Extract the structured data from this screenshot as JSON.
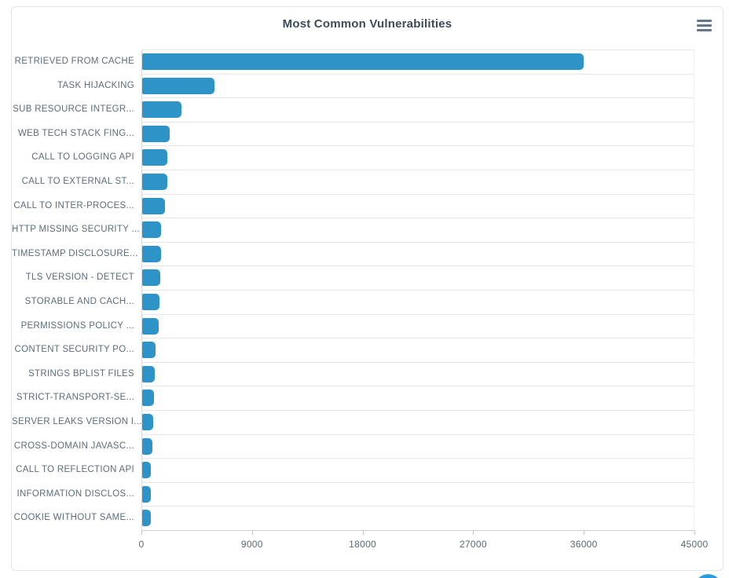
{
  "chart": {
    "title": "Most Common Vulnerabilities"
  },
  "colors": {
    "bar": "#2E93C6",
    "card_border": "#e3e3e3",
    "gridline": "#e8e8e8",
    "axis_line": "#cdcdcd",
    "category_label_text": "#5d6c7b",
    "tick_label_text": "#5a6672",
    "title_text": "#3d4b59",
    "menu_icon": "#64768a",
    "fab_button": "#1d86d8"
  },
  "chart_data": {
    "type": "bar",
    "orientation": "horizontal",
    "title": "Most Common Vulnerabilities",
    "categories": [
      "RETRIEVED FROM CACHE",
      "TASK HIJACKING",
      "SUB RESOURCE INTEGR...",
      "WEB TECH STACK FING...",
      "CALL TO LOGGING API",
      "CALL TO EXTERNAL ST...",
      "CALL TO INTER-PROCES...",
      "HTTP MISSING SECURITY ...",
      "TIMESTAMP DISCLOSURE...",
      "TLS VERSION - DETECT",
      "STORABLE AND CACH...",
      "PERMISSIONS POLICY ...",
      "CONTENT SECURITY PO...",
      "STRINGS BPLIST FILES",
      "STRICT-TRANSPORT-SE...",
      "SERVER LEAKS VERSION I...",
      "CROSS-DOMAIN JAVASC...",
      "CALL TO REFLECTION API",
      "INFORMATION DISCLOS...",
      "COOKIE WITHOUT SAME..."
    ],
    "values": [
      36000,
      5900,
      3200,
      2250,
      2060,
      2020,
      1850,
      1570,
      1530,
      1490,
      1430,
      1320,
      1110,
      1050,
      940,
      900,
      860,
      730,
      690,
      680
    ],
    "x_ticks": [
      0,
      9000,
      18000,
      27000,
      36000,
      45000
    ],
    "xlim": [
      0,
      45000
    ],
    "xlabel": "",
    "ylabel": "",
    "grid": "horizontal row separators only",
    "legend": "none"
  }
}
